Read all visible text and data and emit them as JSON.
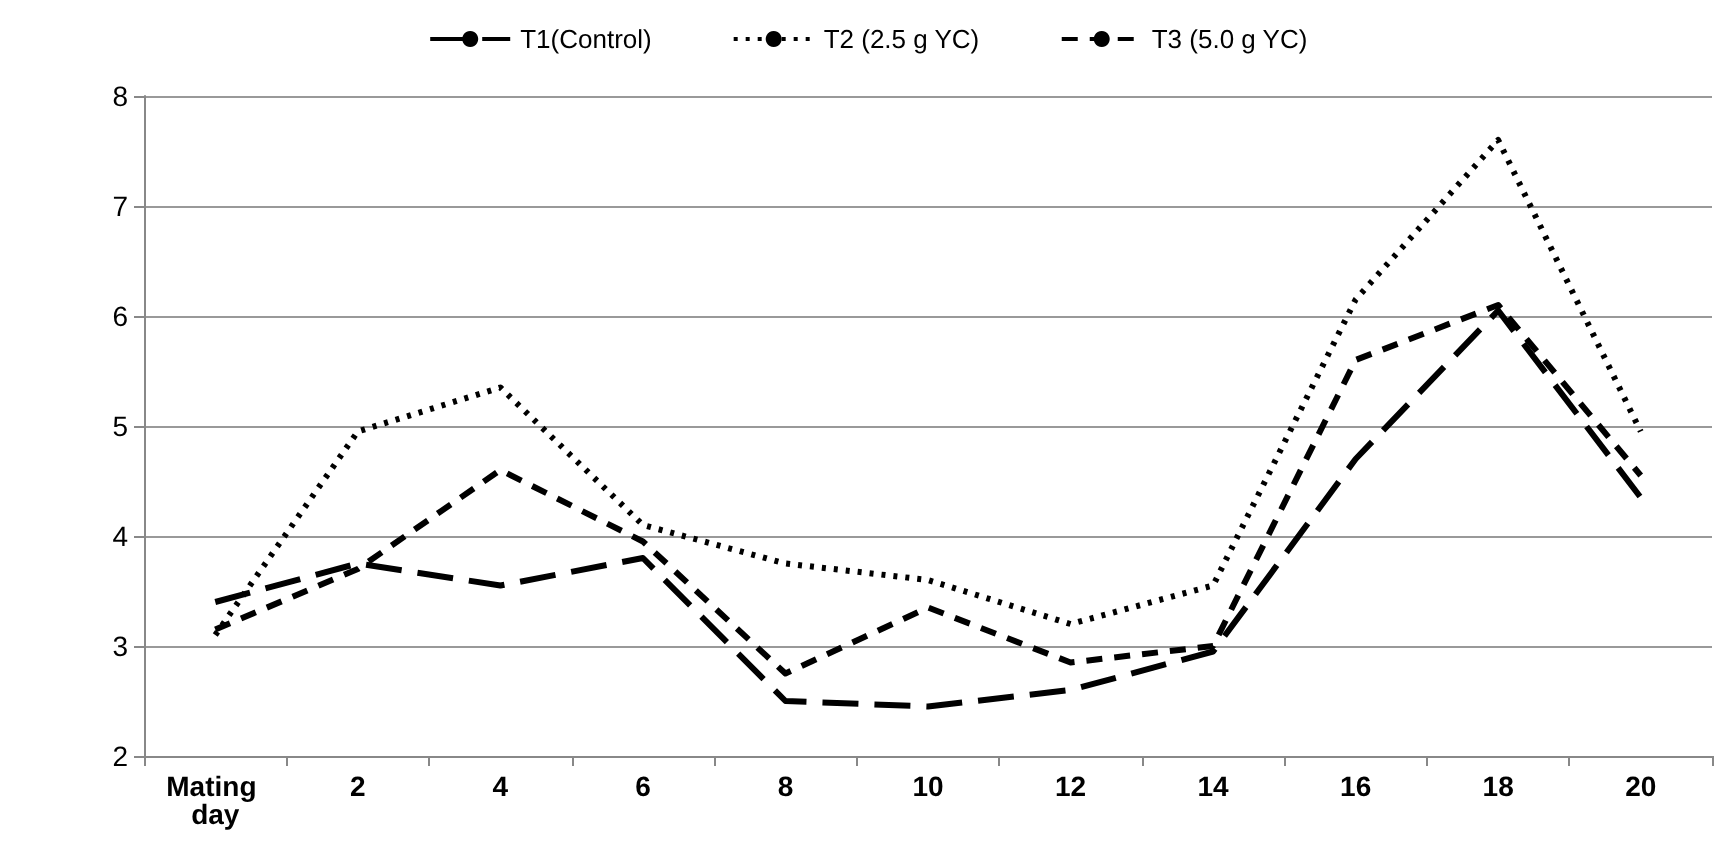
{
  "chart_data": {
    "type": "line",
    "categories": [
      "Mating day",
      "2",
      "4",
      "6",
      "8",
      "10",
      "12",
      "14",
      "16",
      "18",
      "20"
    ],
    "series": [
      {
        "name": "T1(Control)",
        "color": "#000000",
        "line_style": "longdash",
        "values": [
          3.4,
          3.75,
          3.55,
          3.8,
          2.5,
          2.45,
          2.6,
          2.95,
          4.7,
          6.05,
          4.35
        ]
      },
      {
        "name": "T2 (2.5 g YC)",
        "color": "#000000",
        "line_style": "dotted",
        "values": [
          3.1,
          4.95,
          5.35,
          4.1,
          3.75,
          3.6,
          3.2,
          3.55,
          6.15,
          7.6,
          4.95
        ]
      },
      {
        "name": "T3 (5.0 g YC)",
        "color": "#000000",
        "line_style": "dashed",
        "values": [
          3.15,
          3.7,
          4.6,
          3.95,
          2.75,
          3.35,
          2.85,
          3.0,
          5.6,
          6.1,
          4.55
        ]
      }
    ],
    "ylim": [
      2,
      8
    ],
    "yticks": [
      2,
      3,
      4,
      5,
      6,
      7,
      8
    ],
    "grid": "y",
    "legend": "top",
    "marker": "none"
  }
}
